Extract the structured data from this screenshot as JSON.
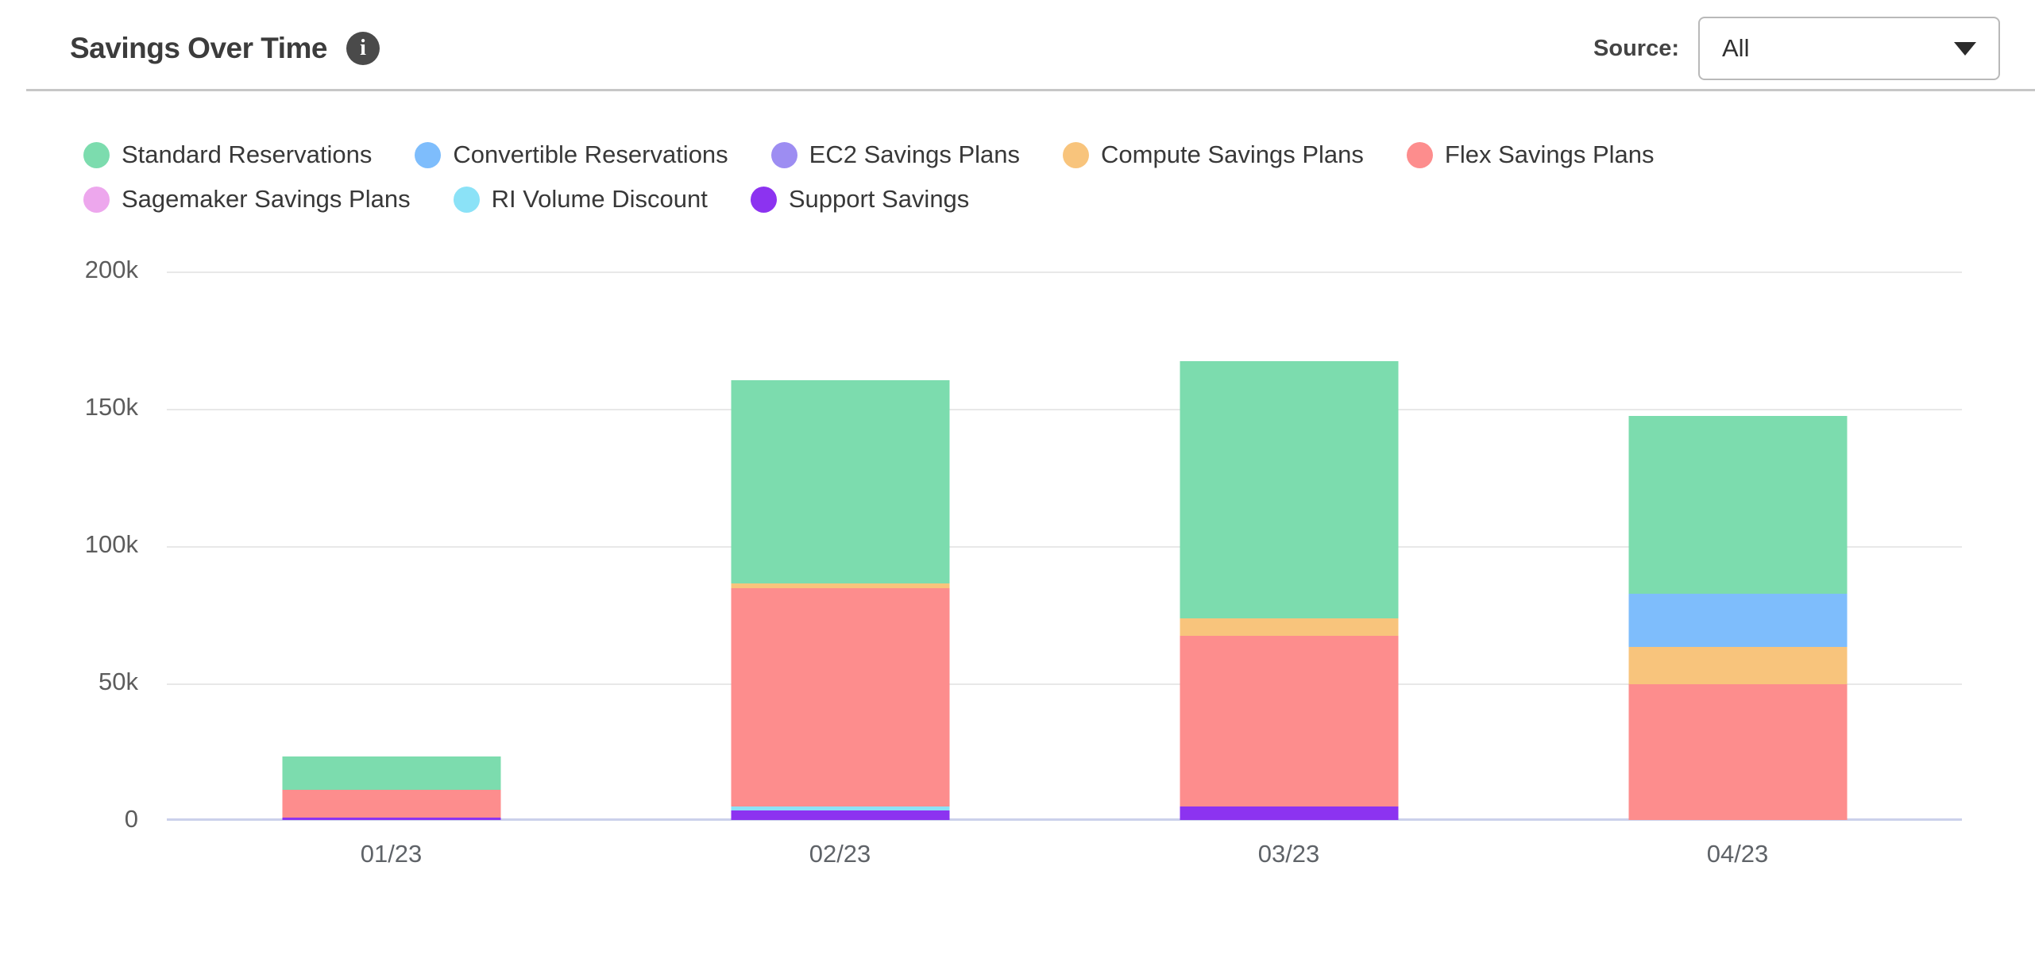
{
  "header": {
    "title": "Savings Over Time",
    "info_icon": "i",
    "source_label": "Source:",
    "source_value": "All"
  },
  "chart_data": {
    "type": "bar",
    "stacked": true,
    "title": "Savings Over Time",
    "xlabel": "",
    "ylabel": "",
    "ylim": [
      0,
      200000
    ],
    "grid": true,
    "legend_position": "top",
    "categories": [
      "01/23",
      "02/23",
      "03/23",
      "04/23"
    ],
    "series": [
      {
        "name": "Standard Reservations",
        "color": "#7cdcae",
        "values": [
          12000,
          74000,
          93500,
          64500
        ]
      },
      {
        "name": "Convertible Reservations",
        "color": "#7ebdfc",
        "values": [
          0,
          0,
          0,
          19500
        ]
      },
      {
        "name": "EC2 Savings Plans",
        "color": "#9d8df2",
        "values": [
          0,
          0,
          0,
          0
        ]
      },
      {
        "name": "Compute Savings Plans",
        "color": "#f8c47c",
        "values": [
          0,
          1800,
          6500,
          13500
        ]
      },
      {
        "name": "Flex Savings Plans",
        "color": "#fd8d8d",
        "values": [
          10200,
          79500,
          62000,
          49500
        ]
      },
      {
        "name": "Sagemaker Savings Plans",
        "color": "#eda7ed",
        "values": [
          0,
          0,
          0,
          0
        ]
      },
      {
        "name": "RI Volume Discount",
        "color": "#8be2f7",
        "values": [
          0,
          1200,
          0,
          0
        ]
      },
      {
        "name": "Support Savings",
        "color": "#8c33f0",
        "values": [
          800,
          3600,
          5000,
          0
        ]
      }
    ],
    "stack_order": [
      "Support Savings",
      "RI Volume Discount",
      "Flex Savings Plans",
      "Compute Savings Plans",
      "Convertible Reservations",
      "Standard Reservations"
    ],
    "yticks": [
      {
        "value": 0,
        "label": "0"
      },
      {
        "value": 50000,
        "label": "50k"
      },
      {
        "value": 100000,
        "label": "100k"
      },
      {
        "value": 150000,
        "label": "150k"
      },
      {
        "value": 200000,
        "label": "200k"
      }
    ],
    "totals": [
      23000,
      160100,
      167000,
      147000
    ]
  },
  "colors": {
    "axis_line": "#cbd1eb",
    "gridline": "#e8e8e8",
    "title_text": "#3c3c3c",
    "axis_text": "#5c5c5c"
  }
}
